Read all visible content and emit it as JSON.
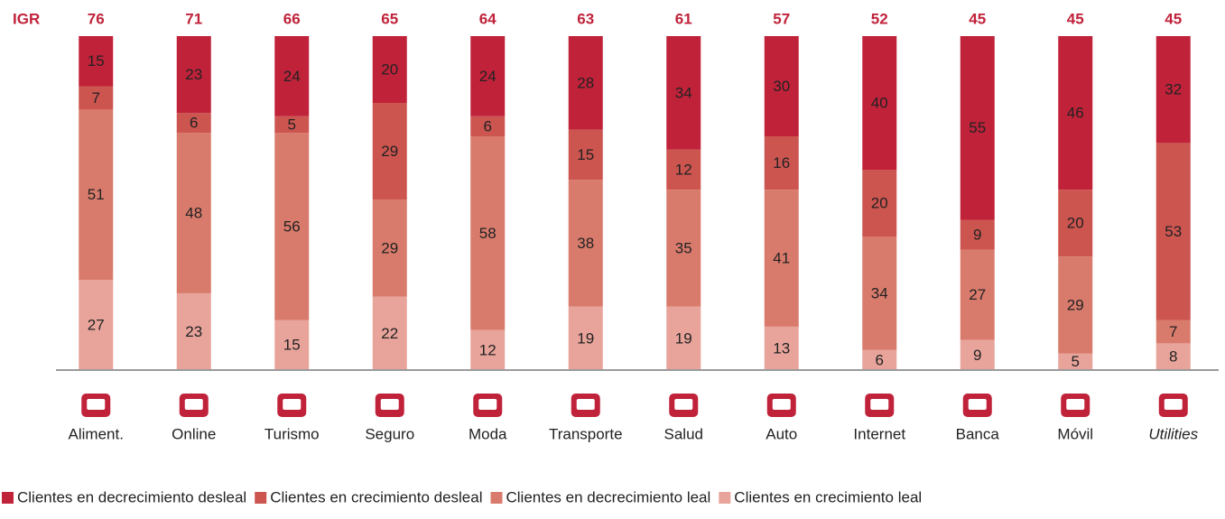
{
  "chart_data": {
    "type": "bar",
    "stacked": true,
    "igr_label": "IGR",
    "igr": [
      76,
      71,
      66,
      65,
      64,
      63,
      61,
      57,
      52,
      45,
      45,
      45
    ],
    "categories": [
      "Aliment.",
      "Online",
      "Turismo",
      "Seguro",
      "Moda",
      "Transporte",
      "Salud",
      "Auto",
      "Internet",
      "Banca",
      "Móvil",
      "Utilities"
    ],
    "series": [
      {
        "name": "Clientes en decrecimiento desleal",
        "color": "#c0223a",
        "values": [
          15,
          23,
          24,
          20,
          24,
          28,
          34,
          30,
          40,
          55,
          46,
          32
        ]
      },
      {
        "name": "Clientes en crecimiento desleal",
        "color": "#cc5550",
        "values": [
          7,
          6,
          5,
          29,
          6,
          15,
          12,
          16,
          20,
          9,
          20,
          53
        ]
      },
      {
        "name": "Clientes en decrecimiento leal",
        "color": "#d97b6c",
        "values": [
          51,
          48,
          56,
          29,
          58,
          38,
          35,
          41,
          34,
          27,
          29,
          7
        ]
      },
      {
        "name": "Clientes en crecimiento leal",
        "color": "#e8a49b",
        "values": [
          27,
          23,
          15,
          22,
          12,
          19,
          19,
          13,
          6,
          9,
          5,
          8
        ]
      }
    ],
    "ylim": [
      0,
      100
    ],
    "legend": "bottom"
  }
}
